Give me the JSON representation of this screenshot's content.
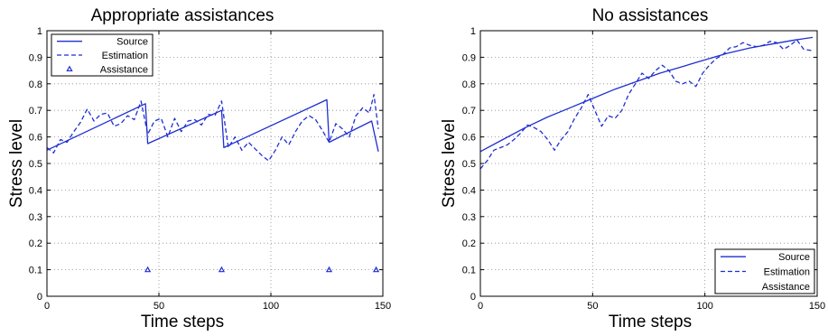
{
  "chart_data": [
    {
      "type": "line",
      "title": "Appropriate assistances",
      "xlabel": "Time steps",
      "ylabel": "Stress level",
      "xlim": [
        0,
        150
      ],
      "ylim": [
        0,
        1
      ],
      "xticks": [
        0,
        50,
        100,
        150
      ],
      "yticks": [
        0,
        0.1,
        0.2,
        0.3,
        0.4,
        0.5,
        0.6,
        0.7,
        0.8,
        0.9,
        1
      ],
      "grid": true,
      "legend_position": "top-left",
      "series": [
        {
          "name": "Source",
          "style": "solid",
          "color": "#1f2fd0",
          "x": [
            0,
            44,
            45,
            78,
            79,
            125,
            126,
            145,
            148
          ],
          "y": [
            0.55,
            0.725,
            0.575,
            0.7,
            0.56,
            0.74,
            0.58,
            0.66,
            0.545
          ]
        },
        {
          "name": "Estimation",
          "style": "dashed",
          "color": "#1f2fd0",
          "x": [
            0,
            3,
            6,
            9,
            12,
            15,
            18,
            21,
            24,
            27,
            30,
            33,
            36,
            39,
            42,
            45,
            48,
            51,
            54,
            57,
            60,
            63,
            66,
            69,
            72,
            75,
            78,
            81,
            84,
            87,
            90,
            93,
            96,
            99,
            102,
            105,
            108,
            111,
            114,
            117,
            120,
            123,
            126,
            129,
            132,
            135,
            138,
            141,
            144,
            146,
            148
          ],
          "y": [
            0.56,
            0.54,
            0.59,
            0.58,
            0.62,
            0.655,
            0.705,
            0.66,
            0.685,
            0.69,
            0.64,
            0.65,
            0.68,
            0.665,
            0.735,
            0.61,
            0.66,
            0.67,
            0.6,
            0.67,
            0.62,
            0.66,
            0.665,
            0.645,
            0.685,
            0.68,
            0.735,
            0.56,
            0.6,
            0.55,
            0.58,
            0.555,
            0.53,
            0.51,
            0.55,
            0.6,
            0.57,
            0.62,
            0.66,
            0.68,
            0.665,
            0.625,
            0.58,
            0.65,
            0.63,
            0.6,
            0.68,
            0.71,
            0.69,
            0.76,
            0.63
          ]
        },
        {
          "name": "Assistance",
          "style": "triangle-marker",
          "color": "#1f2fd0",
          "x": [
            45,
            78,
            126,
            147
          ],
          "y": [
            0.1,
            0.1,
            0.1,
            0.1
          ]
        }
      ]
    },
    {
      "type": "line",
      "title": "No assistances",
      "xlabel": "Time steps",
      "ylabel": "Stress level",
      "xlim": [
        0,
        150
      ],
      "ylim": [
        0,
        1
      ],
      "xticks": [
        0,
        50,
        100,
        150
      ],
      "yticks": [
        0,
        0.1,
        0.2,
        0.3,
        0.4,
        0.5,
        0.6,
        0.7,
        0.8,
        0.9,
        1
      ],
      "grid": true,
      "legend_position": "bottom-right",
      "series": [
        {
          "name": "Source",
          "style": "solid",
          "color": "#1f2fd0",
          "x": [
            0,
            10,
            20,
            30,
            40,
            50,
            60,
            70,
            80,
            90,
            100,
            110,
            120,
            130,
            140,
            148
          ],
          "y": [
            0.545,
            0.59,
            0.635,
            0.675,
            0.71,
            0.745,
            0.78,
            0.81,
            0.84,
            0.865,
            0.89,
            0.915,
            0.935,
            0.95,
            0.965,
            0.975
          ]
        },
        {
          "name": "Estimation",
          "style": "dashed",
          "color": "#1f2fd0",
          "x": [
            0,
            3,
            6,
            9,
            12,
            15,
            18,
            21,
            24,
            27,
            30,
            33,
            36,
            39,
            42,
            45,
            48,
            51,
            54,
            57,
            60,
            63,
            66,
            69,
            72,
            75,
            78,
            81,
            84,
            87,
            90,
            93,
            96,
            99,
            102,
            105,
            108,
            111,
            114,
            117,
            120,
            123,
            126,
            129,
            132,
            135,
            138,
            141,
            144,
            148
          ],
          "y": [
            0.48,
            0.51,
            0.55,
            0.56,
            0.57,
            0.59,
            0.615,
            0.645,
            0.635,
            0.62,
            0.59,
            0.55,
            0.59,
            0.62,
            0.67,
            0.71,
            0.76,
            0.7,
            0.64,
            0.68,
            0.67,
            0.7,
            0.76,
            0.8,
            0.84,
            0.82,
            0.85,
            0.87,
            0.85,
            0.81,
            0.8,
            0.81,
            0.79,
            0.84,
            0.87,
            0.895,
            0.91,
            0.935,
            0.94,
            0.955,
            0.945,
            0.94,
            0.945,
            0.96,
            0.955,
            0.93,
            0.945,
            0.965,
            0.93,
            0.925
          ]
        },
        {
          "name": "Assistance",
          "style": "triangle-marker",
          "color": "#1f2fd0",
          "x": [],
          "y": []
        }
      ]
    }
  ]
}
